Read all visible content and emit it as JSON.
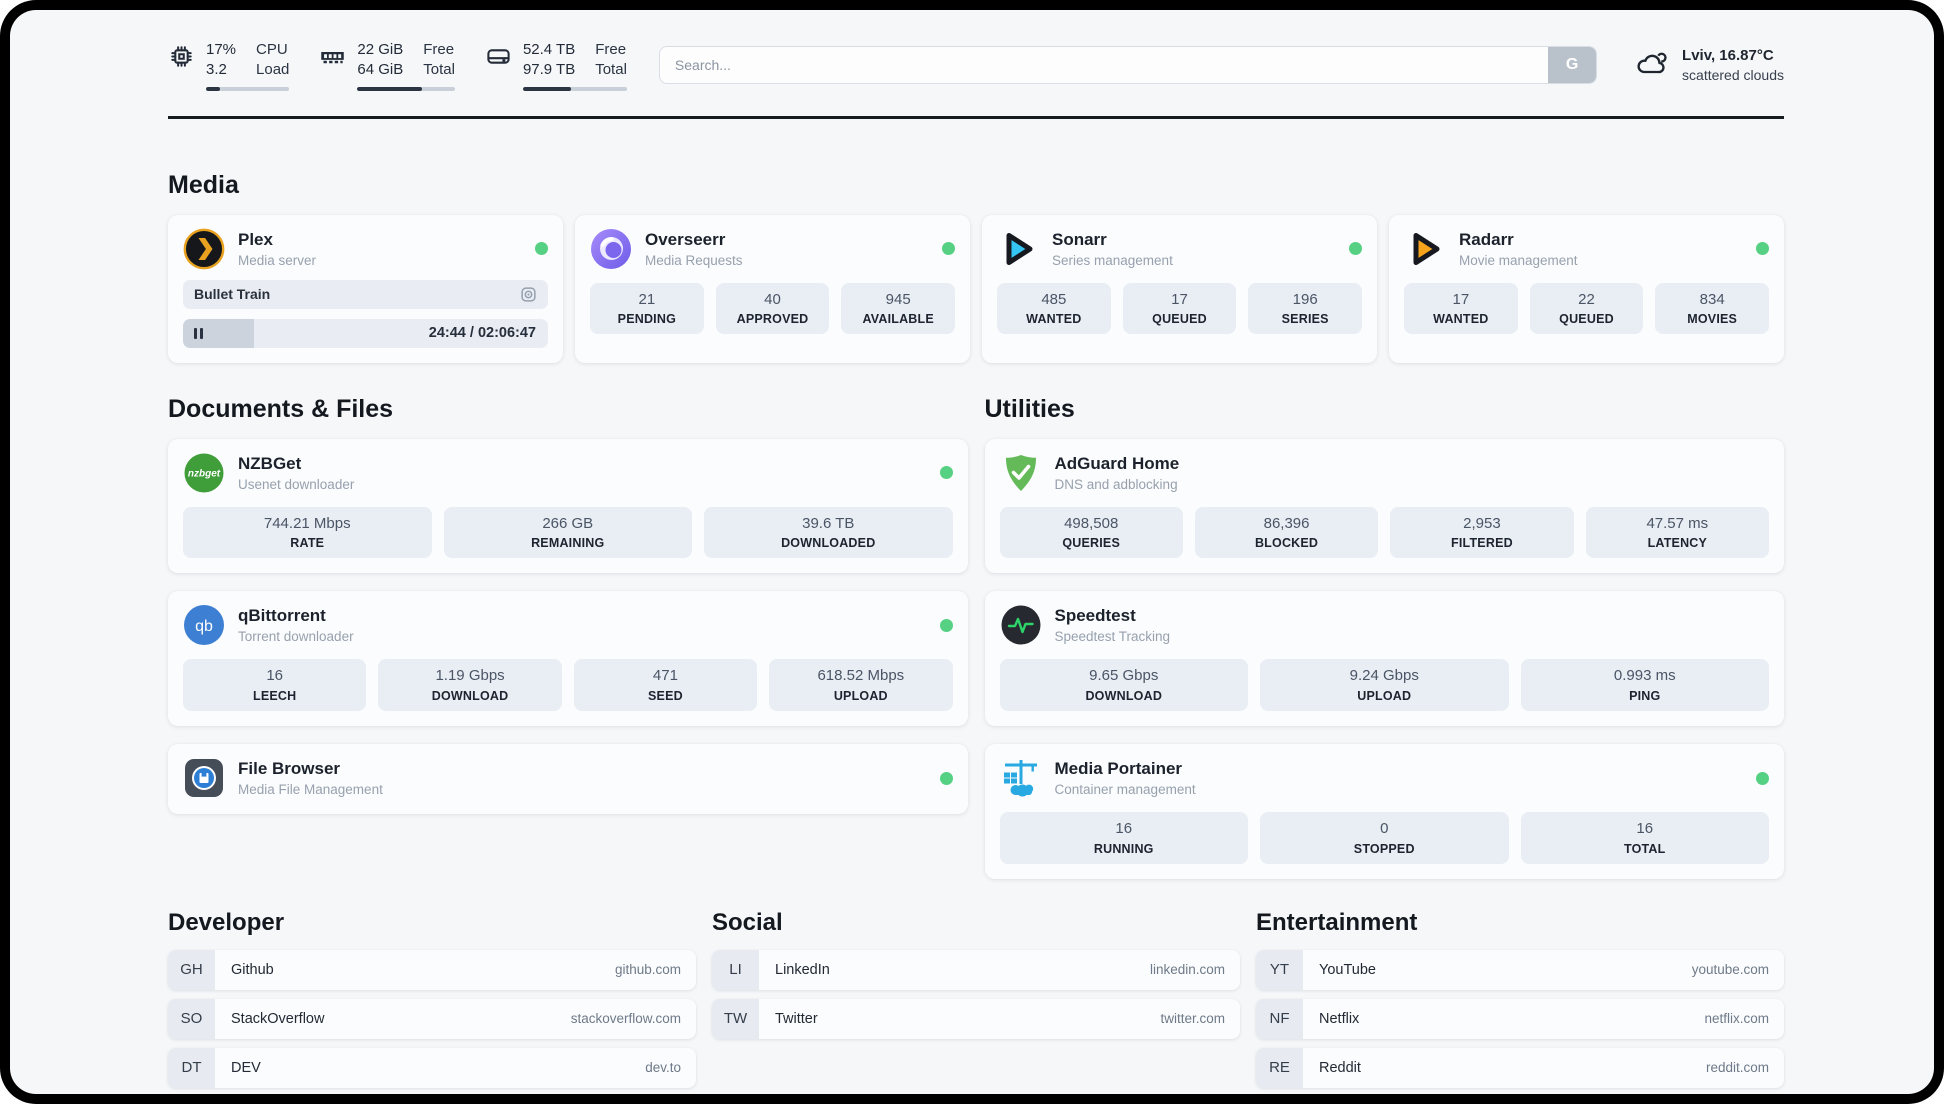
{
  "colors": {
    "status_online": "#56d184",
    "accent_dark": "#2b3442"
  },
  "header": {
    "widgets": [
      {
        "name": "cpu",
        "values": [
          "17%",
          "3.2"
        ],
        "labels": [
          "CPU",
          "Load"
        ],
        "progress_pct": 17
      },
      {
        "name": "memory",
        "values": [
          "22 GiB",
          "64 GiB"
        ],
        "labels": [
          "Free",
          "Total"
        ],
        "progress_pct": 66
      },
      {
        "name": "disk",
        "values": [
          "52.4 TB",
          "97.9 TB"
        ],
        "labels": [
          "Free",
          "Total"
        ],
        "progress_pct": 46
      }
    ],
    "search": {
      "placeholder": "Search...",
      "button_label": "G"
    },
    "weather": {
      "location_temp": "Lviv, 16.87°C",
      "condition": "scattered clouds"
    }
  },
  "media": {
    "title": "Media",
    "plex": {
      "name": "Plex",
      "subtitle": "Media server",
      "status": "online",
      "now_playing": "Bullet Train",
      "time": "24:44 / 02:06:47",
      "progress_pct": 19.5
    },
    "overseerr": {
      "name": "Overseerr",
      "subtitle": "Media Requests",
      "status": "online",
      "stats": [
        {
          "value": "21",
          "label": "PENDING"
        },
        {
          "value": "40",
          "label": "APPROVED"
        },
        {
          "value": "945",
          "label": "AVAILABLE"
        }
      ]
    },
    "sonarr": {
      "name": "Sonarr",
      "subtitle": "Series management",
      "status": "online",
      "stats": [
        {
          "value": "485",
          "label": "WANTED"
        },
        {
          "value": "17",
          "label": "QUEUED"
        },
        {
          "value": "196",
          "label": "SERIES"
        }
      ]
    },
    "radarr": {
      "name": "Radarr",
      "subtitle": "Movie management",
      "status": "online",
      "stats": [
        {
          "value": "17",
          "label": "WANTED"
        },
        {
          "value": "22",
          "label": "QUEUED"
        },
        {
          "value": "834",
          "label": "MOVIES"
        }
      ]
    }
  },
  "documents": {
    "title": "Documents & Files",
    "nzbget": {
      "name": "NZBGet",
      "subtitle": "Usenet downloader",
      "status": "online",
      "stats": [
        {
          "value": "744.21 Mbps",
          "label": "RATE"
        },
        {
          "value": "266 GB",
          "label": "REMAINING"
        },
        {
          "value": "39.6 TB",
          "label": "DOWNLOADED"
        }
      ]
    },
    "qbittorrent": {
      "name": "qBittorrent",
      "subtitle": "Torrent downloader",
      "status": "online",
      "stats": [
        {
          "value": "16",
          "label": "LEECH"
        },
        {
          "value": "1.19 Gbps",
          "label": "DOWNLOAD"
        },
        {
          "value": "471",
          "label": "SEED"
        },
        {
          "value": "618.52 Mbps",
          "label": "UPLOAD"
        }
      ]
    },
    "filebrowser": {
      "name": "File Browser",
      "subtitle": "Media File Management",
      "status": "online"
    }
  },
  "utilities": {
    "title": "Utilities",
    "adguard": {
      "name": "AdGuard Home",
      "subtitle": "DNS and adblocking",
      "stats": [
        {
          "value": "498,508",
          "label": "QUERIES"
        },
        {
          "value": "86,396",
          "label": "BLOCKED"
        },
        {
          "value": "2,953",
          "label": "FILTERED"
        },
        {
          "value": "47.57 ms",
          "label": "LATENCY"
        }
      ]
    },
    "speedtest": {
      "name": "Speedtest",
      "subtitle": "Speedtest Tracking",
      "stats": [
        {
          "value": "9.65 Gbps",
          "label": "DOWNLOAD"
        },
        {
          "value": "9.24 Gbps",
          "label": "UPLOAD"
        },
        {
          "value": "0.993 ms",
          "label": "PING"
        }
      ]
    },
    "portainer": {
      "name": "Media Portainer",
      "subtitle": "Container management",
      "status": "online",
      "stats": [
        {
          "value": "16",
          "label": "RUNNING"
        },
        {
          "value": "0",
          "label": "STOPPED"
        },
        {
          "value": "16",
          "label": "TOTAL"
        }
      ]
    }
  },
  "bookmarks": [
    {
      "title": "Developer",
      "links": [
        {
          "abbr": "GH",
          "name": "Github",
          "domain": "github.com"
        },
        {
          "abbr": "SO",
          "name": "StackOverflow",
          "domain": "stackoverflow.com"
        },
        {
          "abbr": "DT",
          "name": "DEV",
          "domain": "dev.to"
        }
      ]
    },
    {
      "title": "Social",
      "links": [
        {
          "abbr": "LI",
          "name": "LinkedIn",
          "domain": "linkedin.com"
        },
        {
          "abbr": "TW",
          "name": "Twitter",
          "domain": "twitter.com"
        }
      ]
    },
    {
      "title": "Entertainment",
      "links": [
        {
          "abbr": "YT",
          "name": "YouTube",
          "domain": "youtube.com"
        },
        {
          "abbr": "NF",
          "name": "Netflix",
          "domain": "netflix.com"
        },
        {
          "abbr": "RE",
          "name": "Reddit",
          "domain": "reddit.com"
        }
      ]
    }
  ]
}
